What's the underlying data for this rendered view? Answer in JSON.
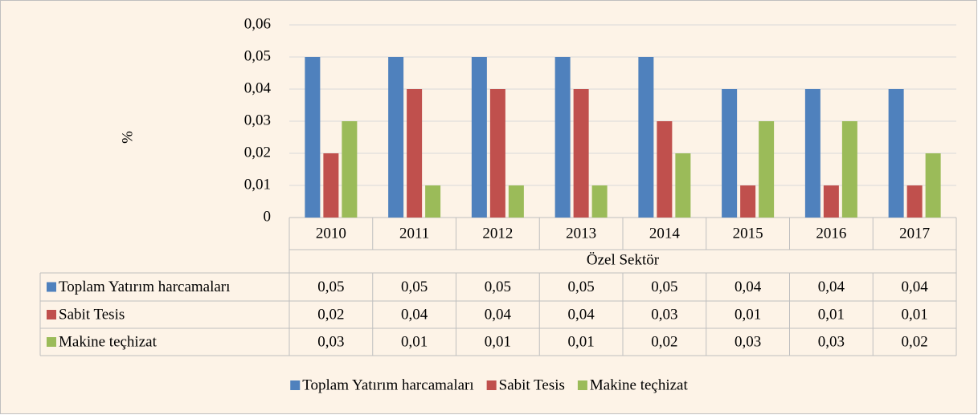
{
  "chart_data": {
    "type": "bar",
    "ylabel": "%",
    "group_label": "Özel Sektör",
    "categories": [
      "2010",
      "2011",
      "2012",
      "2013",
      "2014",
      "2015",
      "2016",
      "2017"
    ],
    "series": [
      {
        "name": "Toplam Yatırım harcamaları",
        "color": "#4f81bd",
        "values": [
          0.05,
          0.05,
          0.05,
          0.05,
          0.05,
          0.04,
          0.04,
          0.04
        ],
        "value_labels": [
          "0,05",
          "0,05",
          "0,05",
          "0,05",
          "0,05",
          "0,04",
          "0,04",
          "0,04"
        ]
      },
      {
        "name": "Sabit Tesis",
        "color": "#c0504d",
        "values": [
          0.02,
          0.04,
          0.04,
          0.04,
          0.03,
          0.01,
          0.01,
          0.01
        ],
        "value_labels": [
          "0,02",
          "0,04",
          "0,04",
          "0,04",
          "0,03",
          "0,01",
          "0,01",
          "0,01"
        ]
      },
      {
        "name": "Makine teçhizat",
        "color": "#9bbb59",
        "values": [
          0.03,
          0.01,
          0.01,
          0.01,
          0.02,
          0.03,
          0.03,
          0.02
        ],
        "value_labels": [
          "0,03",
          "0,01",
          "0,01",
          "0,01",
          "0,02",
          "0,03",
          "0,03",
          "0,02"
        ]
      }
    ],
    "ylim": [
      0,
      0.06
    ],
    "yticks": [
      0,
      {
        "value": 0.01,
        "label": "0,01"
      },
      {
        "value": 0.02,
        "label": "0,02"
      },
      {
        "value": 0.03,
        "label": "0,03"
      },
      {
        "value": 0.04,
        "label": "0,04"
      },
      {
        "value": 0.05,
        "label": "0,05"
      },
      {
        "value": 0.06,
        "label": "0,06"
      }
    ],
    "grid": true,
    "legend": "bottom"
  }
}
